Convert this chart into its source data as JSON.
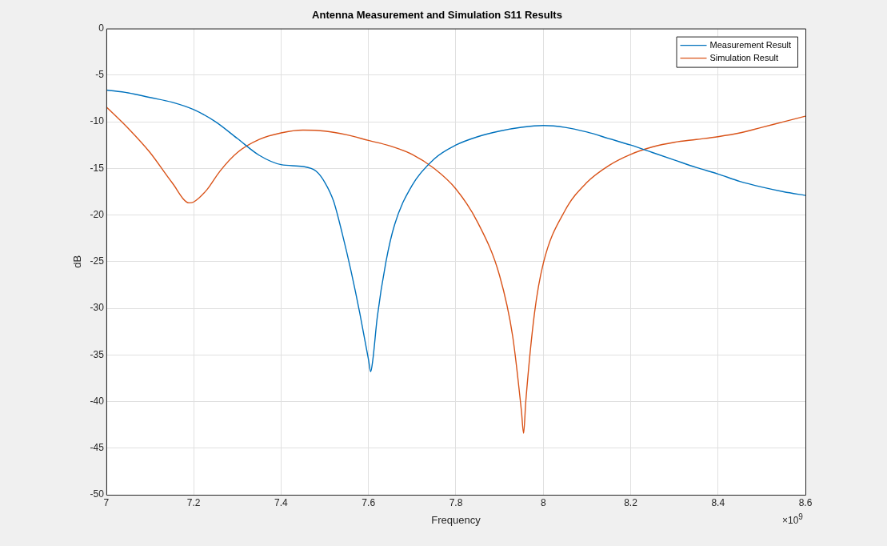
{
  "chart_data": {
    "type": "line",
    "title": "Antenna Measurement and Simulation S11 Results",
    "xlabel": "Frequency",
    "ylabel": "dB",
    "annotations": [
      "×10$^{9}$"
    ],
    "xlim": [
      7,
      8.6
    ],
    "xticks": [
      7,
      7.2,
      7.4,
      7.6,
      7.8,
      8,
      8.2,
      8.4,
      8.6
    ],
    "ylim": [
      -50,
      0
    ],
    "yticks": [
      -50,
      -45,
      -40,
      -35,
      -30,
      -25,
      -20,
      -15,
      -10,
      -5,
      0
    ],
    "grid": true,
    "legend": "top right",
    "marker": "none",
    "line_style": "solid",
    "series": [
      {
        "name": "Measurement Result",
        "color": "#0072bd",
        "x": [
          7,
          7.05,
          7.1,
          7.15,
          7.2,
          7.25,
          7.3,
          7.35,
          7.4,
          7.45,
          7.48,
          7.5,
          7.52,
          7.54,
          7.56,
          7.58,
          7.6,
          7.605,
          7.61,
          7.62,
          7.64,
          7.66,
          7.7,
          7.75,
          7.8,
          7.85,
          7.9,
          7.95,
          8,
          8.05,
          8.1,
          8.15,
          8.2,
          8.25,
          8.3,
          8.35,
          8.4,
          8.45,
          8.5,
          8.55,
          8.6
        ],
        "values": [
          -6.6,
          -6.9,
          -7.4,
          -7.9,
          -8.7,
          -10,
          -11.8,
          -13.6,
          -14.6,
          -14.8,
          -15.3,
          -16.5,
          -18.5,
          -22,
          -26,
          -30.5,
          -35.5,
          -36.8,
          -35.5,
          -31,
          -25,
          -21,
          -16.8,
          -14,
          -12.5,
          -11.6,
          -11,
          -10.6,
          -10.4,
          -10.6,
          -11.1,
          -11.8,
          -12.5,
          -13.3,
          -14.1,
          -14.9,
          -15.6,
          -16.4,
          -17,
          -17.5,
          -17.9
        ]
      },
      {
        "name": "Simulation Result",
        "color": "#d95319",
        "x": [
          7,
          7.05,
          7.1,
          7.15,
          7.19,
          7.2,
          7.23,
          7.26,
          7.3,
          7.35,
          7.4,
          7.45,
          7.5,
          7.55,
          7.6,
          7.65,
          7.7,
          7.75,
          7.8,
          7.85,
          7.9,
          7.93,
          7.95,
          7.955,
          7.96,
          7.98,
          8,
          8.05,
          8.1,
          8.15,
          8.2,
          8.25,
          8.3,
          8.35,
          8.4,
          8.45,
          8.5,
          8.55,
          8.6
        ],
        "values": [
          -8.4,
          -10.7,
          -13.3,
          -16.5,
          -18.7,
          -18.6,
          -17.3,
          -15.3,
          -13.3,
          -11.9,
          -11.2,
          -10.9,
          -11,
          -11.4,
          -12,
          -12.6,
          -13.5,
          -15,
          -17.2,
          -20.8,
          -26.5,
          -33,
          -41,
          -43.4,
          -40,
          -30.5,
          -25.2,
          -19.5,
          -16.5,
          -14.7,
          -13.5,
          -12.7,
          -12.2,
          -11.9,
          -11.6,
          -11.2,
          -10.6,
          -10,
          -9.4
        ]
      }
    ]
  }
}
